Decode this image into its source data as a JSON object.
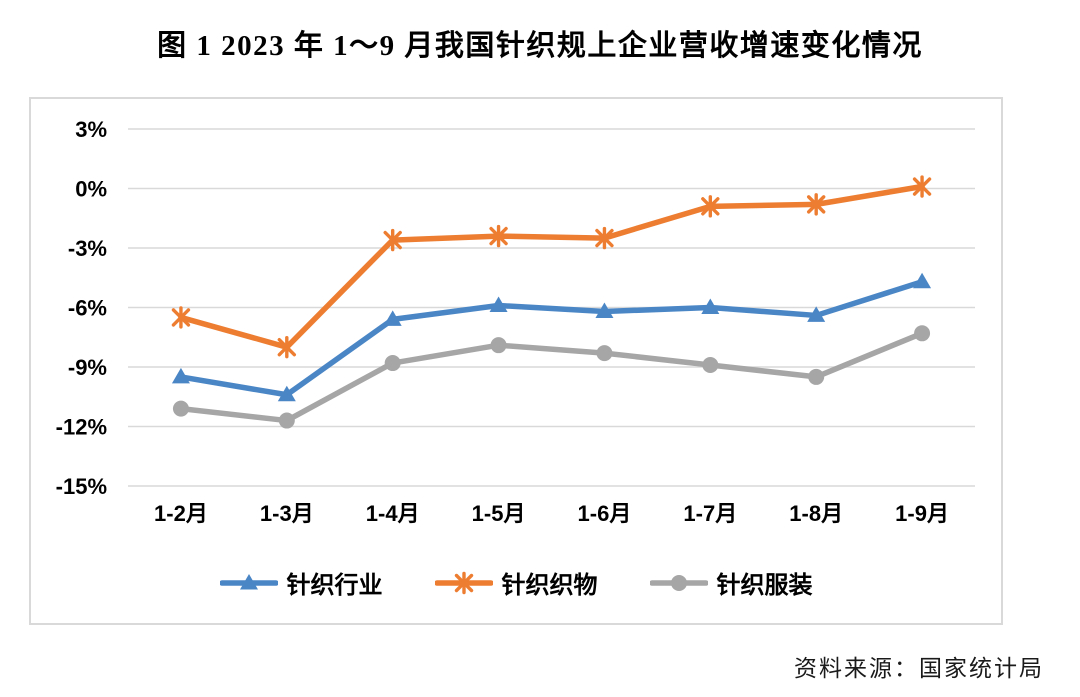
{
  "title": "图 1  2023 年 1～9 月我国针织规上企业营收增速变化情况",
  "source": "资料来源：国家统计局",
  "chart_data": {
    "type": "line",
    "title": "图 1  2023 年 1～9 月我国针织规上企业营收增速变化情况",
    "categories": [
      "1-2月",
      "1-3月",
      "1-4月",
      "1-5月",
      "1-6月",
      "1-7月",
      "1-8月",
      "1-9月"
    ],
    "series": [
      {
        "name": "针织行业",
        "marker": "triangle",
        "color": "#4a86c6",
        "values": [
          -9.5,
          -10.4,
          -6.6,
          -5.9,
          -6.2,
          -6.0,
          -6.4,
          -4.7
        ]
      },
      {
        "name": "针织织物",
        "marker": "asterisk",
        "color": "#ed7d31",
        "values": [
          -6.5,
          -8.0,
          -2.6,
          -2.4,
          -2.5,
          -0.9,
          -0.8,
          0.1
        ]
      },
      {
        "name": "针织服装",
        "marker": "circle",
        "color": "#a6a6a6",
        "values": [
          -11.1,
          -11.7,
          -8.8,
          -7.9,
          -8.3,
          -8.9,
          -9.5,
          -7.3
        ]
      }
    ],
    "unit": "%",
    "yticks": [
      3,
      0,
      -3,
      -6,
      -9,
      -12,
      -15
    ],
    "ytick_labels": [
      "3%",
      "0%",
      "-3%",
      "-6%",
      "-9%",
      "-12%",
      "-15%"
    ],
    "ylim": [
      -15,
      3
    ],
    "grid": true,
    "gridline_color": "#d9d9d9",
    "axis_label_color": "#000000",
    "legend_position": "bottom"
  }
}
